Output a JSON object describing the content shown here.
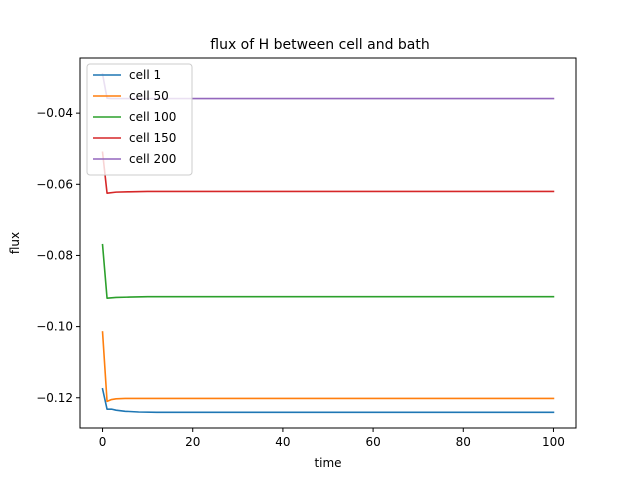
{
  "chart_data": {
    "type": "line",
    "title": "flux of H between cell and bath",
    "xlabel": "time",
    "ylabel": "flux",
    "xlim": [
      -5,
      105
    ],
    "ylim": [
      -0.1285,
      -0.0245
    ],
    "xticks": [
      0,
      20,
      40,
      60,
      80,
      100
    ],
    "xtick_labels": [
      "0",
      "20",
      "40",
      "60",
      "80",
      "100"
    ],
    "yticks": [
      -0.12,
      -0.1,
      -0.08,
      -0.06,
      -0.04
    ],
    "ytick_labels": [
      "−0.12",
      "−0.10",
      "−0.08",
      "−0.06",
      "−0.04"
    ],
    "grid": false,
    "legend_position": "top-left",
    "series": [
      {
        "name": "cell 1",
        "color": "#1f77b4",
        "x": [
          0,
          1,
          2,
          3,
          5,
          8,
          12,
          20,
          100
        ],
        "y": [
          -0.1175,
          -0.1232,
          -0.1232,
          -0.1235,
          -0.1238,
          -0.124,
          -0.1241,
          -0.1241,
          -0.1241
        ]
      },
      {
        "name": "cell 50",
        "color": "#ff7f0e",
        "x": [
          0,
          1,
          2,
          3,
          5,
          10,
          100
        ],
        "y": [
          -0.1015,
          -0.121,
          -0.1205,
          -0.1203,
          -0.1202,
          -0.1202,
          -0.1202
        ]
      },
      {
        "name": "cell 100",
        "color": "#2ca02c",
        "x": [
          0,
          1,
          3,
          6,
          10,
          20,
          100
        ],
        "y": [
          -0.077,
          -0.092,
          -0.0918,
          -0.0917,
          -0.0916,
          -0.0916,
          -0.0916
        ]
      },
      {
        "name": "cell 150",
        "color": "#d62728",
        "x": [
          0,
          1,
          3,
          6,
          10,
          20,
          100
        ],
        "y": [
          -0.051,
          -0.0625,
          -0.0622,
          -0.0621,
          -0.062,
          -0.062,
          -0.062
        ]
      },
      {
        "name": "cell 200",
        "color": "#9467bd",
        "x": [
          0,
          1,
          2,
          5,
          100
        ],
        "y": [
          -0.029,
          -0.0358,
          -0.0359,
          -0.0359,
          -0.0359
        ]
      }
    ]
  }
}
